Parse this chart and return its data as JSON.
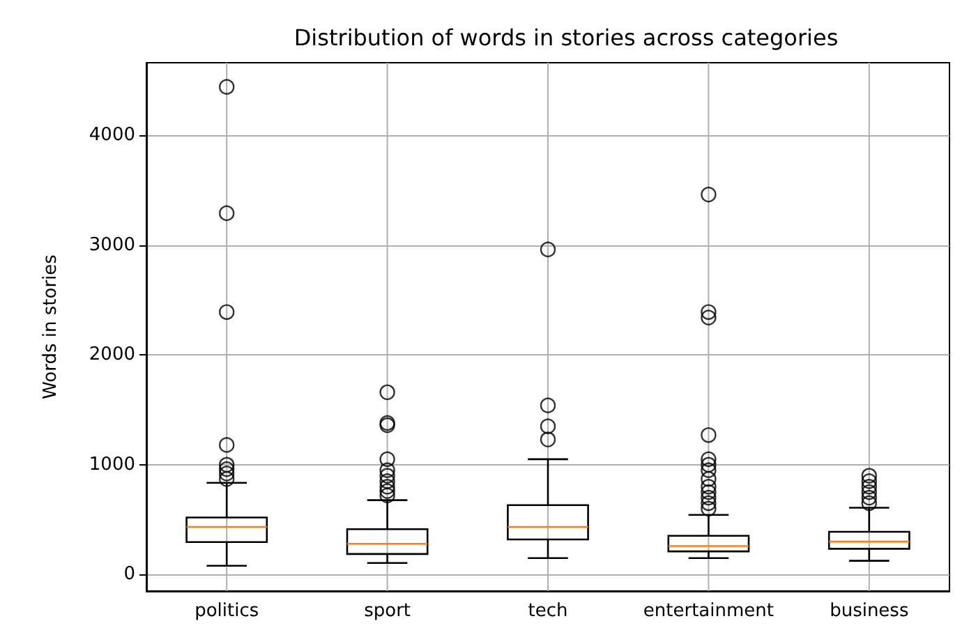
{
  "chart_data": {
    "type": "box",
    "title": "Distribution of words in stories across categories",
    "ylabel": "Words in stories",
    "categories": [
      "politics",
      "sport",
      "tech",
      "entertainment",
      "business"
    ],
    "boxes": [
      {
        "low": 80,
        "q1": 296,
        "median": 434,
        "q3": 519,
        "high": 835,
        "outliers": [
          4440,
          3290,
          2390,
          1180,
          1000,
          960,
          920,
          870
        ]
      },
      {
        "low": 105,
        "q1": 187,
        "median": 280,
        "q3": 413,
        "high": 677,
        "outliers": [
          1660,
          1380,
          1360,
          1050,
          950,
          900,
          850,
          800,
          760,
          720
        ]
      },
      {
        "low": 150,
        "q1": 320,
        "median": 434,
        "q3": 632,
        "high": 1050,
        "outliers": [
          2960,
          1540,
          1350,
          1230
        ]
      },
      {
        "low": 150,
        "q1": 211,
        "median": 259,
        "q3": 353,
        "high": 543,
        "outliers": [
          3460,
          2390,
          2340,
          1270,
          1050,
          1000,
          950,
          870,
          800,
          750,
          700,
          650,
          600
        ]
      },
      {
        "low": 125,
        "q1": 235,
        "median": 300,
        "q3": 389,
        "high": 608,
        "outliers": [
          900,
          850,
          800,
          750,
          700,
          650
        ]
      }
    ],
    "color": "#000000",
    "ylim": [
      -150,
      4660
    ],
    "yticks": [
      0,
      1000,
      2000,
      3000,
      4000
    ],
    "grid": true,
    "marker": "circle"
  }
}
